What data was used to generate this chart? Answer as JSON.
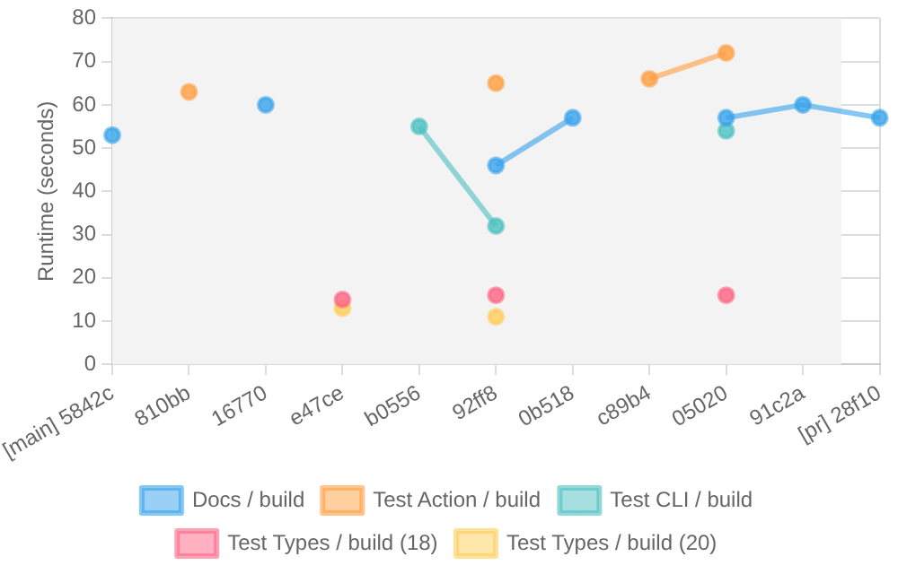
{
  "chart_data": {
    "type": "line",
    "ylabel": "Runtime (seconds)",
    "categories": [
      "[main] 5842c",
      "810bb",
      "16770",
      "e47ce",
      "b0556",
      "92ff8",
      "0b518",
      "c89b4",
      "05020",
      "91c2a",
      "[pr] 28f10"
    ],
    "series": [
      {
        "name": "Docs / build",
        "color": "#36a2eb",
        "values": [
          53,
          null,
          60,
          null,
          null,
          46,
          57,
          null,
          57,
          60,
          57
        ]
      },
      {
        "name": "Test Action / build",
        "color": "#ff9f40",
        "values": [
          null,
          63,
          null,
          null,
          null,
          65,
          null,
          66,
          72,
          null,
          null
        ]
      },
      {
        "name": "Test CLI / build",
        "color": "#4bc0c0",
        "values": [
          null,
          null,
          null,
          null,
          55,
          32,
          null,
          null,
          54,
          null,
          null
        ]
      },
      {
        "name": "Test Types / build (18)",
        "type": "scatter",
        "color": "#ff6384",
        "values": [
          null,
          null,
          null,
          15,
          null,
          16,
          null,
          null,
          16,
          null,
          null
        ]
      },
      {
        "name": "Test Types / build (20)",
        "type": "scatter",
        "color": "#ffcd56",
        "values": [
          null,
          null,
          null,
          13,
          null,
          11,
          null,
          null,
          null,
          null,
          null
        ]
      }
    ],
    "ylim": [
      0,
      80
    ],
    "yticks": [
      0,
      10,
      20,
      30,
      40,
      50,
      60,
      70,
      80
    ],
    "bands": [
      {
        "axis": "x",
        "from": "[main] 5842c",
        "to": "91c2a",
        "color": "#f3f3f3"
      }
    ],
    "grid": true,
    "legend": "bottom",
    "marker": "circle",
    "line_style": "solid"
  }
}
